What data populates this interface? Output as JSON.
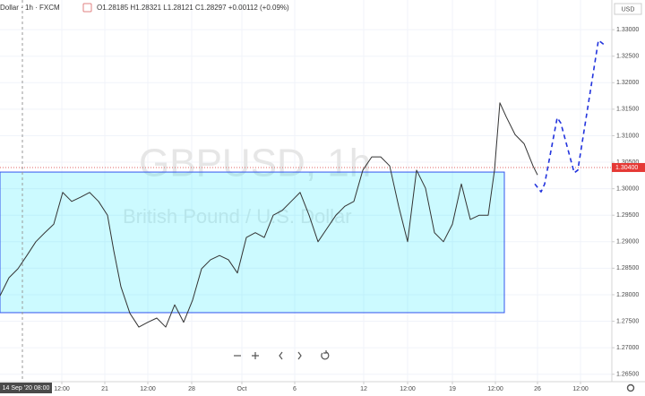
{
  "chart_data": {
    "type": "line",
    "title": "Dollar · 1h · FXCM",
    "ohlc": "O1.28185 H1.28321 L1.28121 C1.28297 +0.00112 (+0.09%)",
    "watermark": "GBPUSD, 1h",
    "watermark_subtitle": "British Pound / U.S. Dollar",
    "currency": "USD",
    "grid": true,
    "xlim": [
      0,
      683
    ],
    "ylim": [
      1.2636,
      1.3356
    ],
    "yticks": [
      {
        "value": 1.265,
        "label": "1.26500"
      },
      {
        "value": 1.27,
        "label": "1.27000"
      },
      {
        "value": 1.275,
        "label": "1.27500"
      },
      {
        "value": 1.28,
        "label": "1.28000"
      },
      {
        "value": 1.285,
        "label": "1.28500"
      },
      {
        "value": 1.29,
        "label": "1.29000"
      },
      {
        "value": 1.295,
        "label": "1.29500"
      },
      {
        "value": 1.3,
        "label": "1.30000"
      },
      {
        "value": 1.305,
        "label": "1.30500"
      },
      {
        "value": 1.31,
        "label": "1.31000"
      },
      {
        "value": 1.315,
        "label": "1.31500"
      },
      {
        "value": 1.32,
        "label": "1.32000"
      },
      {
        "value": 1.325,
        "label": "1.32500"
      },
      {
        "value": 1.33,
        "label": "1.33000"
      }
    ],
    "xticks": [
      {
        "value": 69,
        "label": "12:00"
      },
      {
        "value": 117,
        "label": "21"
      },
      {
        "value": 165,
        "label": "12:00"
      },
      {
        "value": 214,
        "label": "28"
      },
      {
        "value": 270,
        "label": "Oct"
      },
      {
        "value": 329,
        "label": "6"
      },
      {
        "value": 406,
        "label": "12"
      },
      {
        "value": 455,
        "label": "12:00"
      },
      {
        "value": 505,
        "label": "19"
      },
      {
        "value": 553,
        "label": "12:00"
      },
      {
        "value": 600,
        "label": "26"
      },
      {
        "value": 648,
        "label": "12:00"
      }
    ],
    "crosshair": {
      "x": 25,
      "label": "14 Sep '20  08:00"
    },
    "last_price": {
      "value": 1.304,
      "label": "1.30400"
    },
    "rectangle": {
      "x": [
        0,
        563
      ],
      "y": [
        1.27662,
        1.30314
      ],
      "color": "#00e5ff"
    },
    "series": [
      {
        "name": "GBPUSD",
        "color": "#333333",
        "x": [
          0,
          10,
          20,
          30,
          40,
          50,
          60,
          70,
          80,
          90,
          100,
          110,
          120,
          127,
          135,
          145,
          155,
          165,
          175,
          185,
          195,
          205,
          215,
          225,
          235,
          245,
          255,
          265,
          275,
          285,
          295,
          305,
          315,
          325,
          335,
          345,
          355,
          365,
          375,
          385,
          395,
          405,
          415,
          425,
          435,
          445,
          455,
          465,
          475,
          485,
          495,
          505,
          515,
          525,
          535,
          545,
          552,
          558,
          565,
          575,
          585,
          595,
          600
        ],
        "values": [
          1.2798,
          1.2832,
          1.2849,
          1.2874,
          1.29,
          1.2917,
          1.2933,
          1.2993,
          1.2976,
          1.2984,
          1.2993,
          1.2976,
          1.295,
          1.2883,
          1.2815,
          1.2765,
          1.2739,
          1.2748,
          1.2756,
          1.2739,
          1.2781,
          1.2748,
          1.279,
          1.2849,
          1.2866,
          1.2874,
          1.2866,
          1.2841,
          1.2908,
          1.2917,
          1.2908,
          1.295,
          1.2959,
          1.2976,
          1.2993,
          1.295,
          1.29,
          1.2925,
          1.295,
          1.2967,
          1.2976,
          1.3035,
          1.306,
          1.306,
          1.3043,
          1.2967,
          1.29,
          1.3035,
          1.3001,
          1.2917,
          1.29,
          1.2933,
          1.3009,
          1.2942,
          1.295,
          1.295,
          1.3035,
          1.3162,
          1.3136,
          1.3102,
          1.3085,
          1.3043,
          1.3026
        ]
      },
      {
        "name": "Projection",
        "color": "#2233dd",
        "dashed": true,
        "x": [
          597,
          604,
          608,
          622,
          626,
          641,
          645,
          668,
          675
        ],
        "values": [
          1.3009,
          1.2994,
          1.3009,
          1.3134,
          1.3124,
          1.303,
          1.3035,
          1.328,
          1.3271
        ]
      }
    ]
  }
}
